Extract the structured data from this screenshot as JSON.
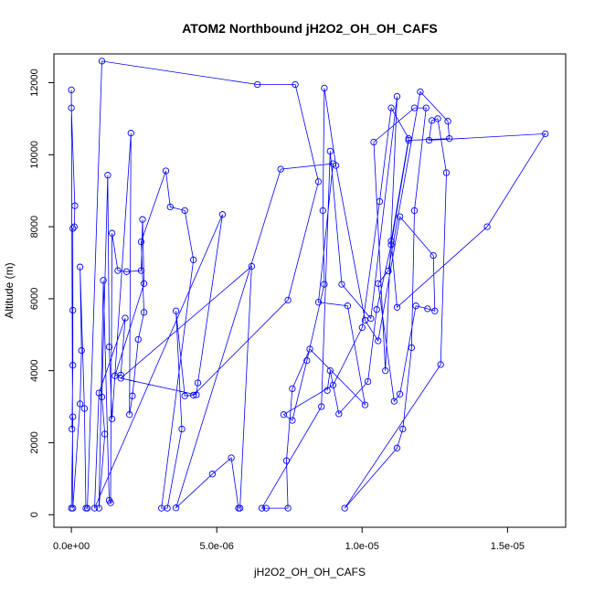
{
  "chart_data": {
    "type": "scatter",
    "title": "ATOM2 Northbound jH2O2_OH_OH_CAFS",
    "xlabel": "jH2O2_OH_OH_CAFS",
    "ylabel": "Altitude (m)",
    "xlim": [
      -6e-07,
      1.7e-05
    ],
    "ylim": [
      -350,
      12800
    ],
    "x_ticks": [
      0,
      5e-06,
      1e-05,
      1.5e-05
    ],
    "x_tick_labels": [
      "0.0e+00",
      "5.0e-06",
      "1.0e-05",
      "1.5e-05"
    ],
    "y_ticks": [
      0,
      2000,
      4000,
      6000,
      8000,
      10000,
      12000
    ],
    "y_tick_labels": [
      "0",
      "2000",
      "4000",
      "6000",
      "8000",
      "10000",
      "12000"
    ],
    "grid": false,
    "marker": "open-circle",
    "connected": true,
    "color": "#0000ff",
    "series": [
      {
        "points": [
          [
            0.0,
            180
          ],
          [
            5e-08,
            2720
          ],
          [
            2e-08,
            2380
          ],
          [
            5e-08,
            4150
          ],
          [
            5e-08,
            5680
          ],
          [
            5e-08,
            7950
          ],
          [
            1e-07,
            8000
          ],
          [
            1.2e-07,
            8580
          ],
          [
            0.0,
            11300
          ],
          [
            0.0,
            11800
          ],
          [
            5e-08,
            180
          ],
          [
            3e-07,
            3080
          ],
          [
            3.5e-07,
            4560
          ],
          [
            3e-07,
            6880
          ],
          [
            4.5e-07,
            2950
          ],
          [
            5e-07,
            180
          ],
          [
            5.5e-07,
            180
          ],
          [
            1.05e-06,
            12600
          ],
          [
            6.4e-06,
            11950
          ],
          [
            7.7e-06,
            11950
          ],
          [
            8.5e-06,
            9250
          ],
          [
            7.45e-06,
            5960
          ],
          [
            4.2e-06,
            3320
          ],
          [
            3.9e-06,
            3300
          ],
          [
            3.6e-06,
            5660
          ],
          [
            3.8e-06,
            2380
          ],
          [
            3.3e-06,
            180
          ],
          [
            3.1e-06,
            180
          ],
          [
            4.2e-06,
            7080
          ],
          [
            3.9e-06,
            8450
          ],
          [
            3.4e-06,
            8550
          ],
          [
            3.25e-06,
            9550
          ],
          [
            2.4e-06,
            7580
          ],
          [
            2.5e-06,
            5620
          ],
          [
            2.3e-06,
            4870
          ],
          [
            2.1e-06,
            3300
          ],
          [
            2e-06,
            2780
          ],
          [
            2.05e-06,
            10600
          ],
          [
            1.4e-06,
            2660
          ],
          [
            1.3e-06,
            4660
          ],
          [
            1.25e-06,
            9430
          ],
          [
            1.05e-06,
            3270
          ],
          [
            1.15e-06,
            2240
          ],
          [
            9.5e-07,
            180
          ],
          [
            1.1e-06,
            6510
          ],
          [
            1.3e-06,
            400
          ],
          [
            1.35e-06,
            330
          ],
          [
            1.4e-06,
            7820
          ],
          [
            1.6e-06,
            6780
          ],
          [
            1.9e-06,
            6750
          ],
          [
            2.4e-06,
            6780
          ],
          [
            2.45e-06,
            8200
          ],
          [
            2.5e-06,
            6420
          ],
          [
            1.5e-06,
            3860
          ],
          [
            1.7e-06,
            3880
          ],
          [
            1.85e-06,
            5460
          ],
          [
            9.5e-07,
            3380
          ],
          [
            8e-07,
            180
          ],
          [
            5.2e-06,
            8340
          ],
          [
            4.35e-06,
            3660
          ],
          [
            4.3e-06,
            3330
          ],
          [
            1.7e-06,
            3790
          ],
          [
            6.2e-06,
            6900
          ],
          [
            5.8e-06,
            180
          ],
          [
            5.75e-06,
            180
          ],
          [
            5.5e-06,
            1580
          ],
          [
            4.85e-06,
            1130
          ],
          [
            3.6e-06,
            190
          ],
          [
            7.2e-06,
            9600
          ],
          [
            9e-06,
            9750
          ],
          [
            8.5e-06,
            5900
          ],
          [
            9.5e-06,
            5800
          ],
          [
            1.01e-05,
            3050
          ],
          [
            8.2e-06,
            4600
          ],
          [
            7.6e-06,
            3500
          ],
          [
            7.4e-06,
            1500
          ],
          [
            7.45e-06,
            180
          ],
          [
            6.7e-06,
            180
          ],
          [
            6.55e-06,
            180
          ],
          [
            8.6e-06,
            3000
          ],
          [
            8.9e-06,
            10100
          ],
          [
            9.3e-06,
            6400
          ],
          [
            1.03e-05,
            5450
          ],
          [
            1.12e-05,
            11620
          ],
          [
            1.08e-05,
            4000
          ],
          [
            1.04e-05,
            10350
          ],
          [
            1.18e-05,
            11300
          ],
          [
            1.22e-05,
            11300
          ],
          [
            1.18e-05,
            8450
          ],
          [
            1.17e-05,
            4640
          ],
          [
            1.14e-05,
            2380
          ],
          [
            1.12e-05,
            1850
          ],
          [
            9.4e-06,
            180
          ],
          [
            1.27e-05,
            4170
          ],
          [
            1.29e-05,
            9500
          ],
          [
            1.26e-05,
            11000
          ],
          [
            1.24e-05,
            10950
          ],
          [
            1.23e-05,
            10400
          ],
          [
            1.63e-05,
            10580
          ],
          [
            1.43e-05,
            8000
          ],
          [
            1.12e-05,
            5760
          ],
          [
            1.1e-05,
            7600
          ],
          [
            1.16e-05,
            10450
          ],
          [
            1.1e-05,
            11300
          ],
          [
            1.06e-05,
            8700
          ],
          [
            1e-05,
            5200
          ],
          [
            9e-06,
            3600
          ],
          [
            7.3e-06,
            2780
          ],
          [
            7.6e-06,
            2620
          ],
          [
            8.1e-06,
            4280
          ],
          [
            8.7e-06,
            6400
          ],
          [
            8.65e-06,
            8450
          ],
          [
            8.7e-06,
            11850
          ],
          [
            9.1e-06,
            9700
          ],
          [
            1.01e-05,
            5400
          ],
          [
            1.055e-05,
            4830
          ],
          [
            1.13e-05,
            8280
          ],
          [
            1.245e-05,
            7200
          ],
          [
            1.25e-05,
            5660
          ],
          [
            1.225e-05,
            5720
          ],
          [
            1.185e-05,
            5800
          ],
          [
            1.13e-05,
            3350
          ],
          [
            1.11e-05,
            3150
          ],
          [
            1.055e-05,
            6420
          ],
          [
            1.09e-05,
            6770
          ],
          [
            1.2e-05,
            11750
          ],
          [
            1.295e-05,
            10930
          ],
          [
            1.3e-05,
            10450
          ],
          [
            1.16e-05,
            10400
          ],
          [
            1.1e-05,
            7500
          ],
          [
            1.05e-05,
            5700
          ],
          [
            1.02e-05,
            3700
          ],
          [
            9.2e-06,
            2800
          ],
          [
            8.9e-06,
            4000
          ],
          [
            8.8e-06,
            3450
          ]
        ]
      }
    ]
  }
}
